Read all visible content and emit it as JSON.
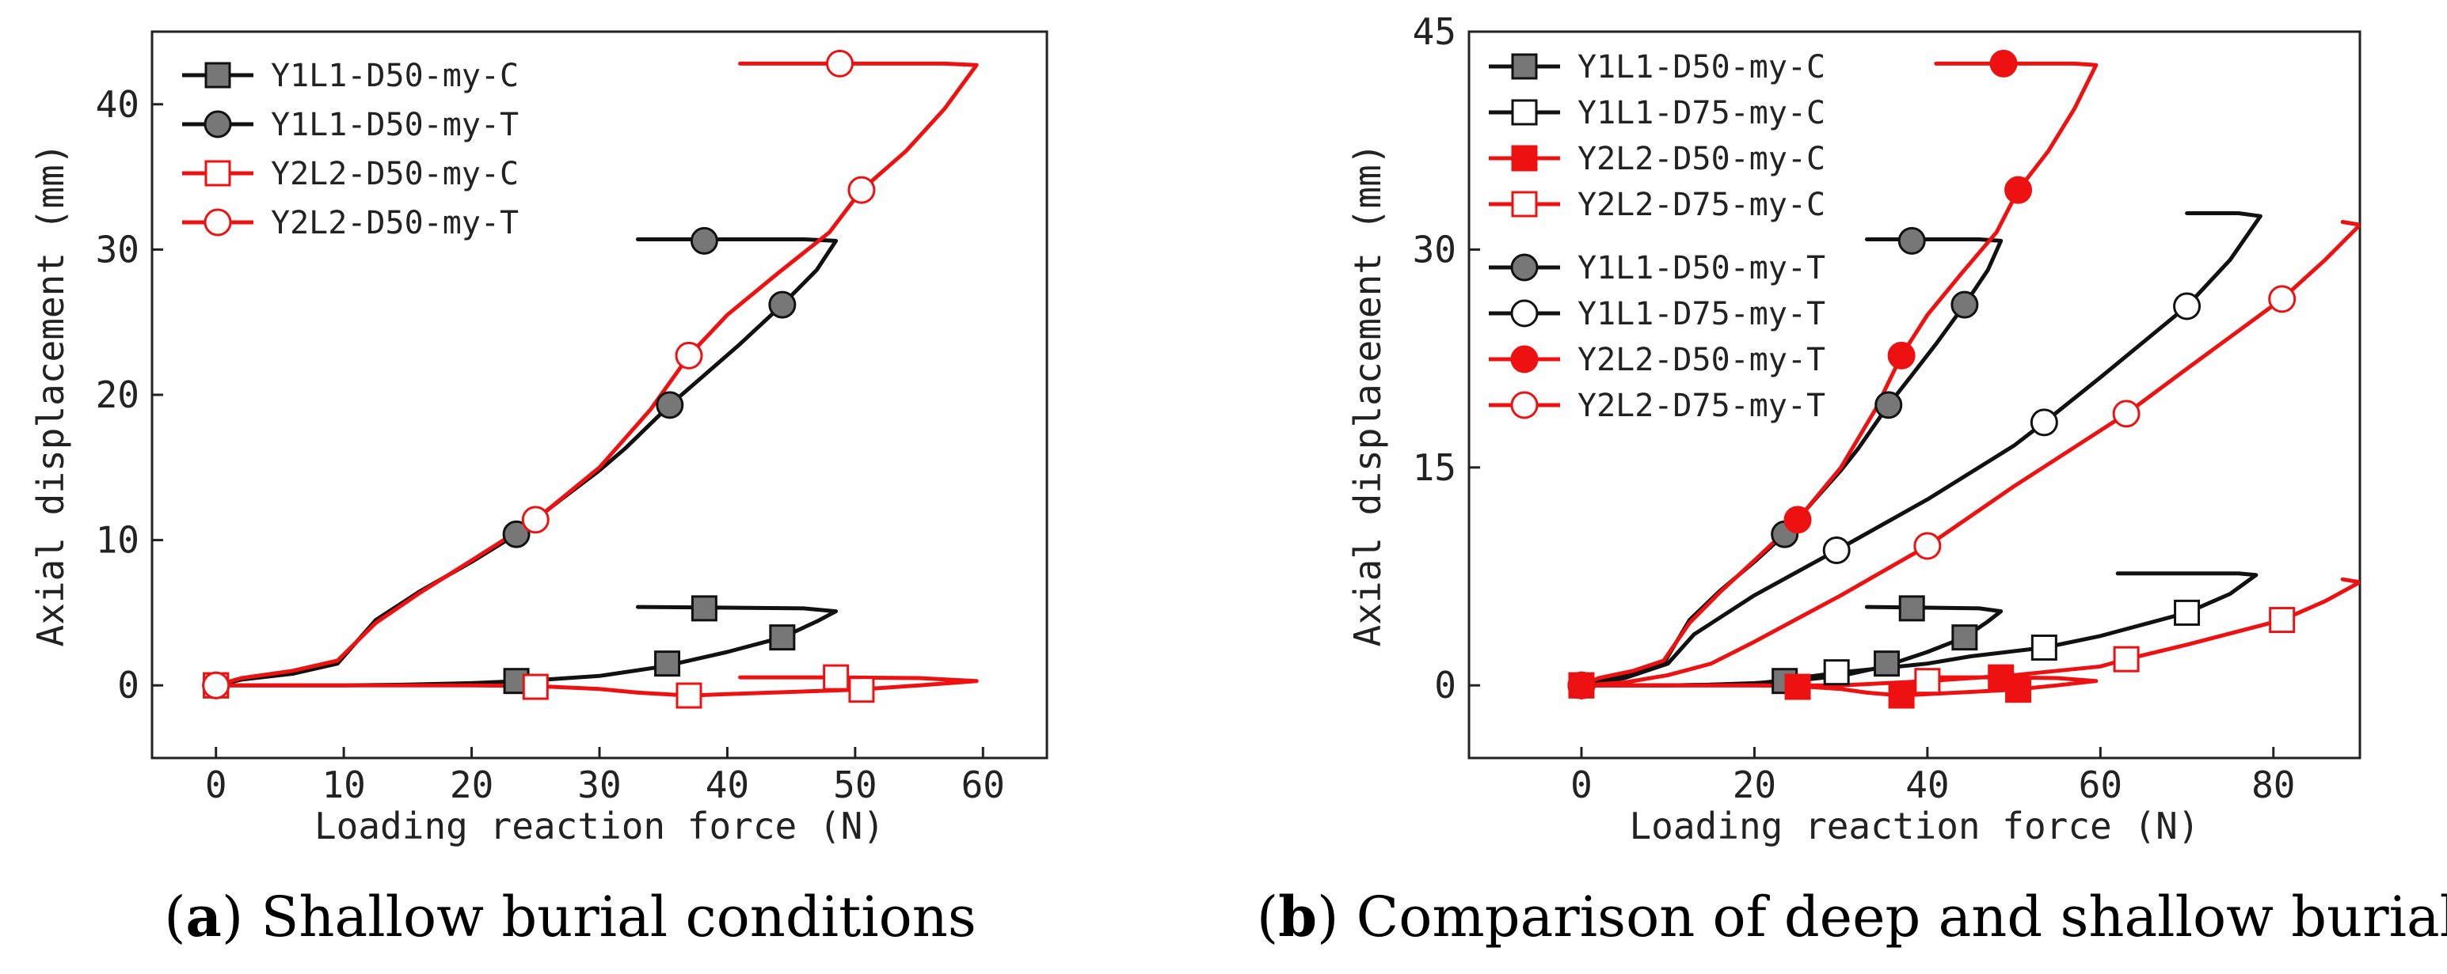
{
  "figure": {
    "captions": [
      {
        "letter": "a",
        "text": " Shallow burial conditions"
      },
      {
        "letter": "b",
        "text": " Comparison of deep and shallow burial"
      }
    ]
  },
  "colors": {
    "black": "#111111",
    "red": "#ee1111",
    "gray": "#777777",
    "white": "#ffffff",
    "axis": "#222222"
  },
  "chart_data": [
    {
      "id": "a",
      "type": "line",
      "xlabel": "Loading reaction force (N)",
      "ylabel": "Axial displacement (mm)",
      "xlim": [
        -5,
        65
      ],
      "ylim": [
        -5,
        45
      ],
      "xticks": [
        0,
        10,
        20,
        30,
        40,
        50,
        60
      ],
      "yticks": [
        0,
        10,
        20,
        30,
        40
      ],
      "legend_position": "top-left",
      "series": [
        {
          "name": "Y1L1-D50-my-C",
          "color": "#111111",
          "marker": "square",
          "marker_fill": "#777777",
          "x": [
            0,
            5,
            10,
            15,
            20,
            25,
            30,
            35,
            40,
            44.3,
            47,
            48.5,
            46,
            40,
            33
          ],
          "y": [
            0,
            0,
            0,
            0.05,
            0.15,
            0.35,
            0.65,
            1.3,
            2.3,
            3.3,
            4.4,
            5.1,
            5.3,
            5.35,
            5.4
          ],
          "marker_points": [
            [
              0,
              0
            ],
            [
              23.5,
              0.3
            ],
            [
              35.3,
              1.5
            ],
            [
              44.3,
              3.3
            ],
            [
              38.2,
              5.3
            ]
          ]
        },
        {
          "name": "Y1L1-D50-my-T",
          "color": "#111111",
          "marker": "circle",
          "marker_fill": "#777777",
          "x": [
            0,
            2,
            6,
            9.5,
            11,
            12.5,
            16,
            20,
            23.5,
            27,
            30,
            32,
            35.5,
            38,
            41,
            44.3,
            47,
            48.5,
            46,
            40,
            33
          ],
          "y": [
            0,
            0.4,
            0.8,
            1.5,
            3,
            4.5,
            6.5,
            8.5,
            10.4,
            12.8,
            14.8,
            16.3,
            19.3,
            21.2,
            23.5,
            26.2,
            28.6,
            30.6,
            30.7,
            30.7,
            30.7
          ],
          "marker_points": [
            [
              0,
              0
            ],
            [
              23.5,
              10.4
            ],
            [
              35.5,
              19.3
            ],
            [
              44.3,
              26.2
            ],
            [
              38.2,
              30.6
            ]
          ]
        },
        {
          "name": "Y2L2-D50-my-C",
          "color": "#ee1111",
          "marker": "square",
          "marker_fill": "#ffffff",
          "x": [
            0,
            10,
            20,
            25,
            30,
            33,
            37,
            40,
            45,
            50,
            55,
            59.5,
            55,
            48.5,
            41
          ],
          "y": [
            0,
            0,
            0,
            -0.05,
            -0.25,
            -0.5,
            -0.7,
            -0.6,
            -0.45,
            -0.3,
            0,
            0.3,
            0.5,
            0.55,
            0.55
          ],
          "marker_points": [
            [
              0,
              0
            ],
            [
              25,
              -0.1
            ],
            [
              37,
              -0.7
            ],
            [
              50.5,
              -0.3
            ],
            [
              48.5,
              0.55
            ]
          ]
        },
        {
          "name": "Y2L2-D50-my-T",
          "color": "#ee1111",
          "marker": "circle",
          "marker_fill": "#ffffff",
          "x": [
            0,
            2,
            6,
            9.5,
            11,
            12.5,
            16,
            20,
            25,
            30,
            34,
            37,
            40,
            44,
            48,
            50.5,
            54,
            57,
            59.5,
            57,
            49,
            41
          ],
          "y": [
            0,
            0.5,
            1,
            1.7,
            3,
            4.3,
            6.4,
            8.6,
            11.4,
            15,
            19,
            22.7,
            25.5,
            28.4,
            31.2,
            34.1,
            36.8,
            39.7,
            42.7,
            42.8,
            42.8,
            42.8
          ],
          "marker_points": [
            [
              0,
              0
            ],
            [
              25,
              11.4
            ],
            [
              37,
              22.7
            ],
            [
              50.5,
              34.1
            ],
            [
              48.8,
              42.8
            ]
          ]
        }
      ]
    },
    {
      "id": "b",
      "type": "line",
      "xlabel": "Loading reaction force (N)",
      "ylabel": "Axial displacement (mm)",
      "xlim": [
        -13,
        90
      ],
      "ylim": [
        -5,
        45
      ],
      "xticks": [
        0,
        20,
        40,
        60,
        80
      ],
      "yticks": [
        0,
        15,
        30,
        45
      ],
      "legend_position": "top-left",
      "series": [
        {
          "name": "Y1L1-D50-my-C",
          "color": "#111111",
          "marker": "square",
          "marker_fill": "#777777",
          "x": [
            0,
            5,
            10,
            15,
            20,
            25,
            30,
            35,
            40,
            44.3,
            47,
            48.5,
            46,
            40,
            33
          ],
          "y": [
            0,
            0,
            0,
            0.05,
            0.15,
            0.35,
            0.65,
            1.3,
            2.3,
            3.3,
            4.4,
            5.1,
            5.3,
            5.35,
            5.4
          ],
          "marker_points": [
            [
              0,
              0
            ],
            [
              23.5,
              0.3
            ],
            [
              35.3,
              1.5
            ],
            [
              44.3,
              3.3
            ],
            [
              38.2,
              5.3
            ]
          ]
        },
        {
          "name": "Y1L1-D75-my-C",
          "color": "#111111",
          "marker": "square",
          "marker_fill": "#ffffff",
          "x": [
            0,
            10,
            20,
            30,
            40,
            45,
            53.5,
            60,
            70,
            75,
            78,
            76,
            70,
            62
          ],
          "y": [
            0,
            0,
            0.1,
            0.9,
            1.5,
            2,
            2.6,
            3.4,
            5,
            6.3,
            7.6,
            7.7,
            7.7,
            7.7
          ],
          "marker_points": [
            [
              29.5,
              0.9
            ],
            [
              53.5,
              2.6
            ],
            [
              70,
              5
            ]
          ]
        },
        {
          "name": "Y2L2-D50-my-C",
          "color": "#ee1111",
          "marker": "square",
          "marker_fill": "#ee1111",
          "x": [
            0,
            10,
            20,
            25,
            30,
            33,
            37,
            40,
            45,
            50,
            55,
            59.5,
            55,
            48.5,
            41
          ],
          "y": [
            0,
            0,
            0,
            -0.05,
            -0.25,
            -0.5,
            -0.7,
            -0.6,
            -0.45,
            -0.3,
            0,
            0.3,
            0.5,
            0.55,
            0.55
          ],
          "marker_points": [
            [
              0,
              0
            ],
            [
              25,
              -0.1
            ],
            [
              37,
              -0.7
            ],
            [
              50.5,
              -0.3
            ],
            [
              48.5,
              0.55
            ]
          ]
        },
        {
          "name": "Y2L2-D75-my-C",
          "color": "#ee1111",
          "marker": "square",
          "marker_fill": "#ffffff",
          "x": [
            0,
            10,
            20,
            30,
            40,
            50,
            60,
            63,
            70,
            81,
            86,
            90,
            88
          ],
          "y": [
            0,
            0,
            0,
            0,
            0.3,
            0.7,
            1.3,
            1.8,
            2.8,
            4.5,
            5.8,
            7.1,
            7.3
          ],
          "marker_points": [
            [
              40,
              0.3
            ],
            [
              63,
              1.8
            ],
            [
              81,
              4.5
            ]
          ]
        },
        {
          "name": "Y1L1-D50-my-T",
          "color": "#111111",
          "marker": "circle",
          "marker_fill": "#777777",
          "x": [
            0,
            2,
            6,
            9.5,
            11,
            12.5,
            16,
            20,
            23.5,
            27,
            30,
            32,
            35.5,
            38,
            41,
            44.3,
            47,
            48.5,
            46,
            40,
            33
          ],
          "y": [
            0,
            0.4,
            0.8,
            1.5,
            3,
            4.5,
            6.5,
            8.5,
            10.4,
            12.8,
            14.8,
            16.3,
            19.3,
            21.2,
            23.5,
            26.2,
            28.6,
            30.6,
            30.7,
            30.7,
            30.7
          ],
          "marker_points": [
            [
              0,
              0
            ],
            [
              23.5,
              10.4
            ],
            [
              35.5,
              19.3
            ],
            [
              44.3,
              26.2
            ],
            [
              38.2,
              30.6
            ]
          ]
        },
        {
          "name": "Y1L1-D75-my-T",
          "color": "#111111",
          "marker": "circle",
          "marker_fill": "#ffffff",
          "x": [
            0,
            5,
            10,
            13,
            20,
            29.5,
            40,
            50,
            53.5,
            60,
            70,
            75,
            78.5,
            76,
            70
          ],
          "y": [
            0,
            0.5,
            1.5,
            3.5,
            6.2,
            9.3,
            12.8,
            16.5,
            18.1,
            21.2,
            26.1,
            29.3,
            32.3,
            32.5,
            32.5
          ],
          "marker_points": [
            [
              0,
              0
            ],
            [
              29.5,
              9.3
            ],
            [
              53.5,
              18.1
            ],
            [
              70,
              26.1
            ]
          ]
        },
        {
          "name": "Y2L2-D50-my-T",
          "color": "#ee1111",
          "marker": "circle",
          "marker_fill": "#ee1111",
          "x": [
            0,
            2,
            6,
            9.5,
            11,
            12.5,
            16,
            20,
            25,
            30,
            34,
            37,
            40,
            44,
            48,
            50.5,
            54,
            57,
            59.5,
            57,
            49,
            41
          ],
          "y": [
            0,
            0.5,
            1,
            1.7,
            3,
            4.3,
            6.4,
            8.6,
            11.4,
            15,
            19,
            22.7,
            25.5,
            28.4,
            31.2,
            34.1,
            36.8,
            39.7,
            42.7,
            42.8,
            42.8,
            42.8
          ],
          "marker_points": [
            [
              0,
              0
            ],
            [
              25,
              11.4
            ],
            [
              37,
              22.7
            ],
            [
              50.5,
              34.1
            ],
            [
              48.8,
              42.8
            ]
          ]
        },
        {
          "name": "Y2L2-D75-my-T",
          "color": "#ee1111",
          "marker": "circle",
          "marker_fill": "#ffffff",
          "x": [
            0,
            5,
            10,
            15,
            20,
            30,
            40,
            50,
            63,
            70,
            81,
            86,
            90,
            88
          ],
          "y": [
            0,
            0.2,
            0.7,
            1.5,
            3,
            6.2,
            9.6,
            13.7,
            18.7,
            21.8,
            26.6,
            29.3,
            31.7,
            31.9
          ],
          "marker_points": [
            [
              40,
              9.6
            ],
            [
              63,
              18.7
            ],
            [
              81,
              26.6
            ]
          ]
        }
      ]
    }
  ]
}
